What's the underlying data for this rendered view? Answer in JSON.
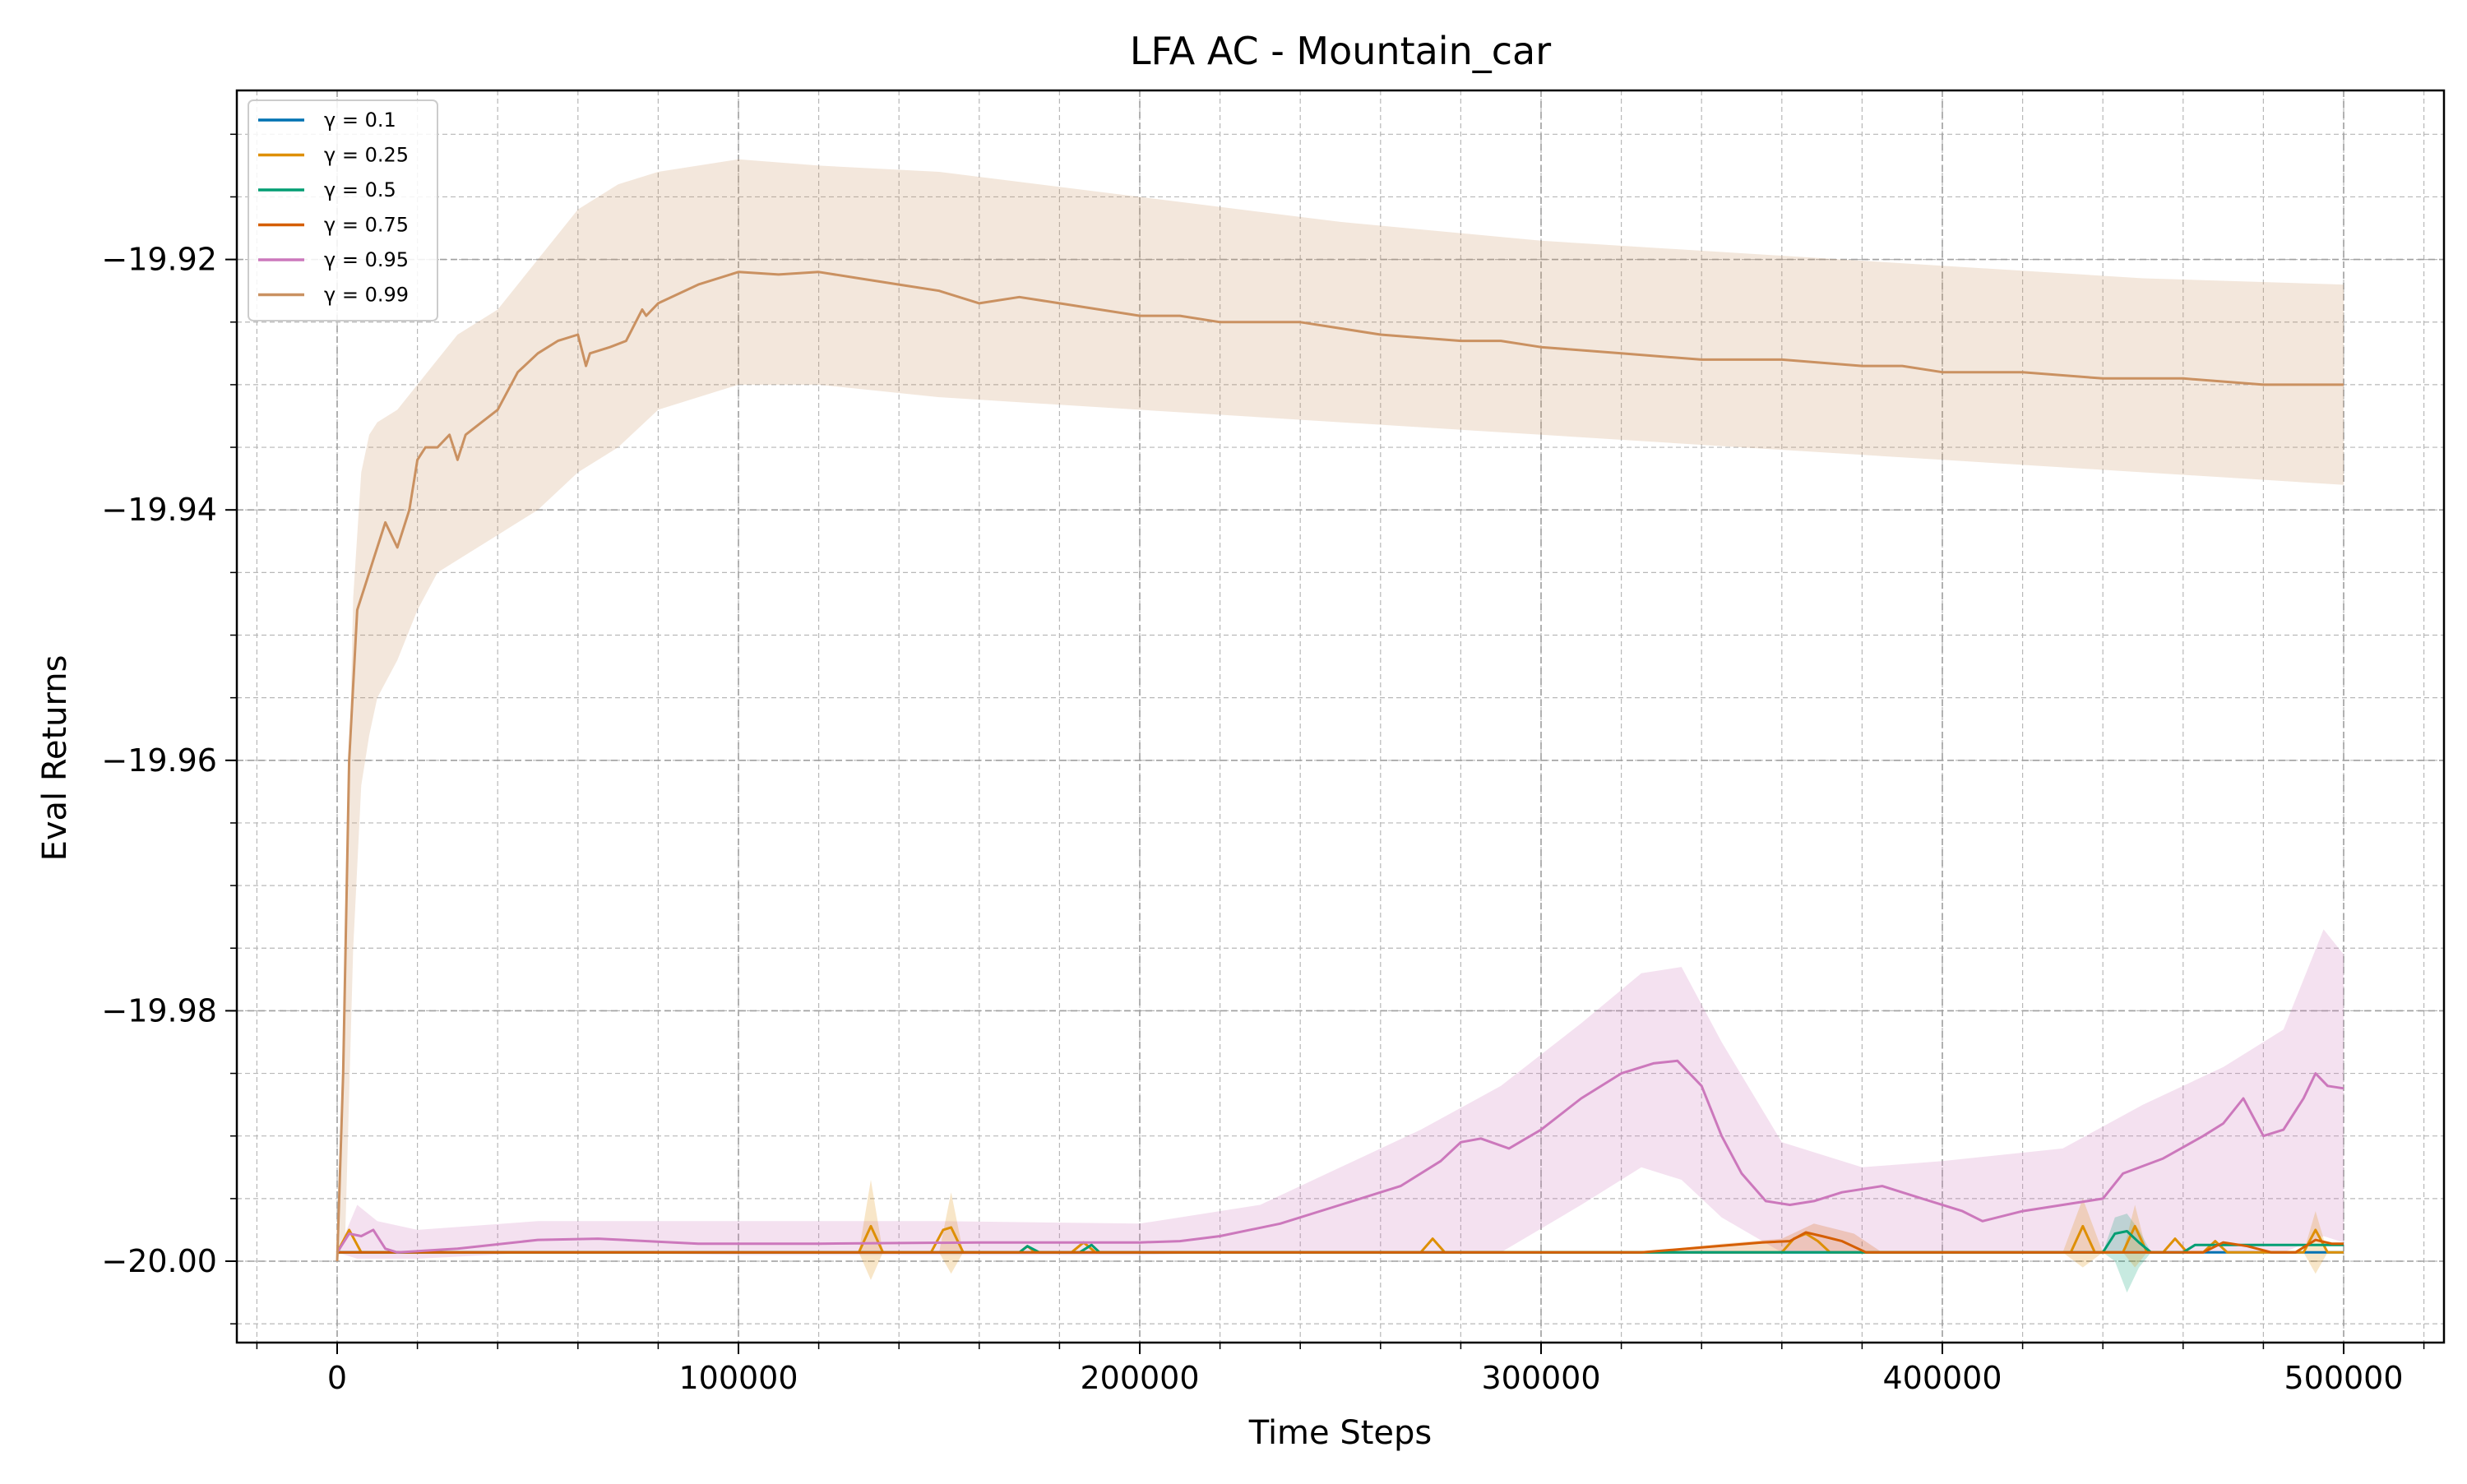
{
  "chart_data": {
    "type": "line",
    "title": "LFA AC - Mountain_car",
    "xlabel": "Time Steps",
    "ylabel": "Eval Returns",
    "xlim": [
      -25000,
      525000
    ],
    "ylim": [
      -20.0065,
      -19.9065
    ],
    "x_ticks": [
      0,
      100000,
      200000,
      300000,
      400000,
      500000
    ],
    "x_tick_labels": [
      "0",
      "100000",
      "200000",
      "300000",
      "400000",
      "500000"
    ],
    "y_ticks": [
      -20.0,
      -19.98,
      -19.96,
      -19.94,
      -19.92
    ],
    "y_tick_labels": [
      "−20.00",
      "−19.98",
      "−19.96",
      "−19.94",
      "−19.92"
    ],
    "x_minor_step": 20000,
    "y_minor_step": 0.005,
    "grid": true,
    "legend_position": "top-left",
    "series": [
      {
        "name": "γ = 0.1",
        "color": "#0072b2",
        "x": [
          0,
          500000
        ],
        "y": [
          -19.9993,
          -19.9993
        ]
      },
      {
        "name": "γ = 0.25",
        "color": "#de8f05",
        "x": [
          0,
          3000,
          6000,
          130000,
          133000,
          136000,
          148000,
          151000,
          153000,
          156000,
          170000,
          172000,
          174000,
          183000,
          186000,
          189000,
          270000,
          273000,
          276000,
          360000,
          363000,
          366000,
          369000,
          372000,
          432000,
          435000,
          438000,
          445000,
          448000,
          451000,
          455000,
          458000,
          461000,
          465000,
          468000,
          471000,
          490000,
          493000,
          496000,
          500000
        ],
        "y": [
          -19.9993,
          -19.9975,
          -19.9993,
          -19.9993,
          -19.9972,
          -19.9993,
          -19.9993,
          -19.9975,
          -19.9973,
          -19.9993,
          -19.9993,
          -19.9988,
          -19.9993,
          -19.9993,
          -19.9985,
          -19.9993,
          -19.9993,
          -19.9982,
          -19.9993,
          -19.9993,
          -19.9982,
          -19.9978,
          -19.9984,
          -19.9993,
          -19.9993,
          -19.9972,
          -19.9993,
          -19.9993,
          -19.9972,
          -19.9993,
          -19.9993,
          -19.9982,
          -19.9993,
          -19.9993,
          -19.9984,
          -19.9993,
          -19.9993,
          -19.9975,
          -19.9993,
          -19.9993
        ]
      },
      {
        "name": "γ = 0.5",
        "color": "#029e73",
        "x": [
          0,
          170000,
          172000,
          175000,
          185000,
          188000,
          190000,
          440000,
          443000,
          446000,
          449000,
          452000,
          460000,
          463000,
          500000
        ],
        "y": [
          -19.9993,
          -19.9993,
          -19.9988,
          -19.9993,
          -19.9993,
          -19.9987,
          -19.9993,
          -19.9993,
          -19.9978,
          -19.9976,
          -19.9985,
          -19.9993,
          -19.9993,
          -19.9987,
          -19.9987
        ]
      },
      {
        "name": "γ = 0.75",
        "color": "#d55e00",
        "x": [
          0,
          325000,
          340000,
          355000,
          362000,
          366000,
          370000,
          375000,
          381000,
          385000,
          465000,
          470000,
          476000,
          482000,
          488000,
          493000,
          497000,
          500000
        ],
        "y": [
          -19.9993,
          -19.9993,
          -19.9989,
          -19.9985,
          -19.9984,
          -19.9977,
          -19.998,
          -19.9984,
          -19.9993,
          -19.9993,
          -19.9993,
          -19.9985,
          -19.9988,
          -19.9993,
          -19.9993,
          -19.9983,
          -19.9986,
          -19.9986
        ]
      },
      {
        "name": "γ = 0.95",
        "color": "#cc78bc",
        "x": [
          0,
          3000,
          6000,
          9000,
          12000,
          15000,
          30000,
          50000,
          65000,
          90000,
          120000,
          160000,
          200000,
          210000,
          220000,
          235000,
          250000,
          265000,
          275000,
          280000,
          285000,
          292000,
          300000,
          310000,
          320000,
          328000,
          334000,
          340000,
          345000,
          350000,
          356000,
          362000,
          368000,
          375000,
          385000,
          395000,
          405000,
          410000,
          420000,
          430000,
          440000,
          445000,
          455000,
          465000,
          470000,
          475000,
          480000,
          485000,
          490000,
          493000,
          496000,
          500000
        ],
        "y": [
          -19.9993,
          -19.9978,
          -19.998,
          -19.9975,
          -19.999,
          -19.9993,
          -19.999,
          -19.9983,
          -19.9982,
          -19.9986,
          -19.9986,
          -19.9985,
          -19.9985,
          -19.9984,
          -19.998,
          -19.997,
          -19.9955,
          -19.994,
          -19.992,
          -19.9905,
          -19.9902,
          -19.991,
          -19.9895,
          -19.987,
          -19.985,
          -19.9842,
          -19.984,
          -19.986,
          -19.99,
          -19.993,
          -19.9952,
          -19.9955,
          -19.9952,
          -19.9945,
          -19.994,
          -19.995,
          -19.996,
          -19.9968,
          -19.996,
          -19.9955,
          -19.995,
          -19.993,
          -19.9918,
          -19.99,
          -19.989,
          -19.987,
          -19.99,
          -19.9895,
          -19.987,
          -19.985,
          -19.986,
          -19.9862
        ]
      },
      {
        "name": "γ = 0.99",
        "color": "#ca9161",
        "x": [
          0,
          1500,
          3000,
          5000,
          7000,
          9000,
          12000,
          15000,
          18000,
          20000,
          22000,
          25000,
          28000,
          30000,
          32000,
          36000,
          40000,
          45000,
          50000,
          55000,
          60000,
          62000,
          63000,
          68000,
          72000,
          76000,
          77000,
          80000,
          90000,
          100000,
          110000,
          120000,
          130000,
          140000,
          150000,
          160000,
          170000,
          180000,
          190000,
          200000,
          210000,
          220000,
          240000,
          260000,
          280000,
          290000,
          300000,
          320000,
          340000,
          360000,
          380000,
          390000,
          400000,
          420000,
          440000,
          460000,
          480000,
          500000
        ],
        "y": [
          -20.0,
          -19.985,
          -19.96,
          -19.948,
          -19.946,
          -19.944,
          -19.941,
          -19.943,
          -19.94,
          -19.936,
          -19.935,
          -19.935,
          -19.934,
          -19.936,
          -19.934,
          -19.933,
          -19.932,
          -19.929,
          -19.9275,
          -19.9265,
          -19.926,
          -19.9285,
          -19.9275,
          -19.927,
          -19.9265,
          -19.924,
          -19.9245,
          -19.9235,
          -19.922,
          -19.921,
          -19.9212,
          -19.921,
          -19.9215,
          -19.922,
          -19.9225,
          -19.9235,
          -19.923,
          -19.9235,
          -19.924,
          -19.9245,
          -19.9245,
          -19.925,
          -19.925,
          -19.926,
          -19.9265,
          -19.9265,
          -19.927,
          -19.9275,
          -19.928,
          -19.928,
          -19.9285,
          -19.9285,
          -19.929,
          -19.929,
          -19.9295,
          -19.9295,
          -19.93,
          -19.93
        ]
      }
    ],
    "bands": [
      {
        "series": "γ = 0.99",
        "color": "#ca9161",
        "x": [
          0,
          2000,
          4000,
          6000,
          8000,
          10000,
          15000,
          20000,
          25000,
          30000,
          40000,
          50000,
          60000,
          70000,
          80000,
          100000,
          120000,
          150000,
          200000,
          250000,
          300000,
          350000,
          400000,
          450000,
          500000
        ],
        "upper": [
          -20.0,
          -19.975,
          -19.947,
          -19.937,
          -19.934,
          -19.933,
          -19.932,
          -19.93,
          -19.928,
          -19.926,
          -19.924,
          -19.92,
          -19.916,
          -19.914,
          -19.913,
          -19.912,
          -19.9125,
          -19.913,
          -19.915,
          -19.917,
          -19.9185,
          -19.9195,
          -19.9205,
          -19.9215,
          -19.922
        ],
        "lower": [
          -20.0,
          -19.998,
          -19.975,
          -19.962,
          -19.958,
          -19.955,
          -19.952,
          -19.948,
          -19.945,
          -19.944,
          -19.942,
          -19.94,
          -19.937,
          -19.935,
          -19.932,
          -19.93,
          -19.93,
          -19.931,
          -19.932,
          -19.933,
          -19.934,
          -19.935,
          -19.936,
          -19.937,
          -19.938
        ]
      },
      {
        "series": "γ = 0.95",
        "color": "#cc78bc",
        "x": [
          0,
          5000,
          10000,
          20000,
          50000,
          100000,
          150000,
          200000,
          230000,
          250000,
          270000,
          290000,
          310000,
          325000,
          335000,
          345000,
          360000,
          380000,
          400000,
          430000,
          450000,
          470000,
          485000,
          495000,
          500000
        ],
        "upper": [
          -19.9993,
          -19.9955,
          -19.9968,
          -19.9975,
          -19.9968,
          -19.9968,
          -19.9968,
          -19.997,
          -19.9955,
          -19.9925,
          -19.9895,
          -19.986,
          -19.981,
          -19.977,
          -19.9765,
          -19.9825,
          -19.9905,
          -19.9925,
          -19.992,
          -19.991,
          -19.9875,
          -19.9845,
          -19.9815,
          -19.9735,
          -19.9755
        ],
        "lower": [
          -19.9993,
          -19.9998,
          -19.9998,
          -19.9998,
          -19.9993,
          -19.9995,
          -19.9995,
          -19.9995,
          -19.9993,
          -19.9993,
          -19.9993,
          -19.9993,
          -19.9955,
          -19.9925,
          -19.9935,
          -19.9965,
          -19.9993,
          -19.9993,
          -19.9993,
          -19.9993,
          -19.9993,
          -19.9993,
          -19.9993,
          -19.998,
          -19.9985
        ]
      },
      {
        "series": "γ = 0.75",
        "color": "#d55e00",
        "x": [
          325000,
          345000,
          360000,
          368000,
          378000,
          385000
        ],
        "upper": [
          -19.9993,
          -19.9986,
          -19.9982,
          -19.997,
          -19.9978,
          -19.9993
        ],
        "lower": [
          -19.9993,
          -19.9993,
          -19.9993,
          -19.9993,
          -19.9993,
          -19.9993
        ]
      },
      {
        "series": "γ = 0.5",
        "color": "#029e73",
        "x": [
          440000,
          443000,
          446000,
          449000,
          452000
        ],
        "upper": [
          -19.9993,
          -19.9965,
          -19.9962,
          -19.9975,
          -19.9993
        ],
        "lower": [
          -19.9993,
          -20.0,
          -20.0025,
          -20.0005,
          -19.9993
        ]
      },
      {
        "series": "γ = 0.25",
        "color": "#de8f05",
        "x": [
          130000,
          133000,
          136000,
          150000,
          153000,
          156000,
          430000,
          435000,
          440000,
          445000,
          448000,
          451000,
          490000,
          493000,
          496000
        ],
        "upper": [
          -19.9993,
          -19.9935,
          -19.9993,
          -19.9993,
          -19.9945,
          -19.9993,
          -19.9993,
          -19.995,
          -19.9993,
          -19.9993,
          -19.9955,
          -19.9993,
          -19.9993,
          -19.996,
          -19.9993
        ],
        "lower": [
          -19.9993,
          -20.0015,
          -19.9993,
          -19.9993,
          -20.001,
          -19.9993,
          -19.9993,
          -20.0005,
          -19.9993,
          -19.9993,
          -20.0005,
          -19.9993,
          -19.9993,
          -20.001,
          -19.9993
        ]
      }
    ]
  }
}
